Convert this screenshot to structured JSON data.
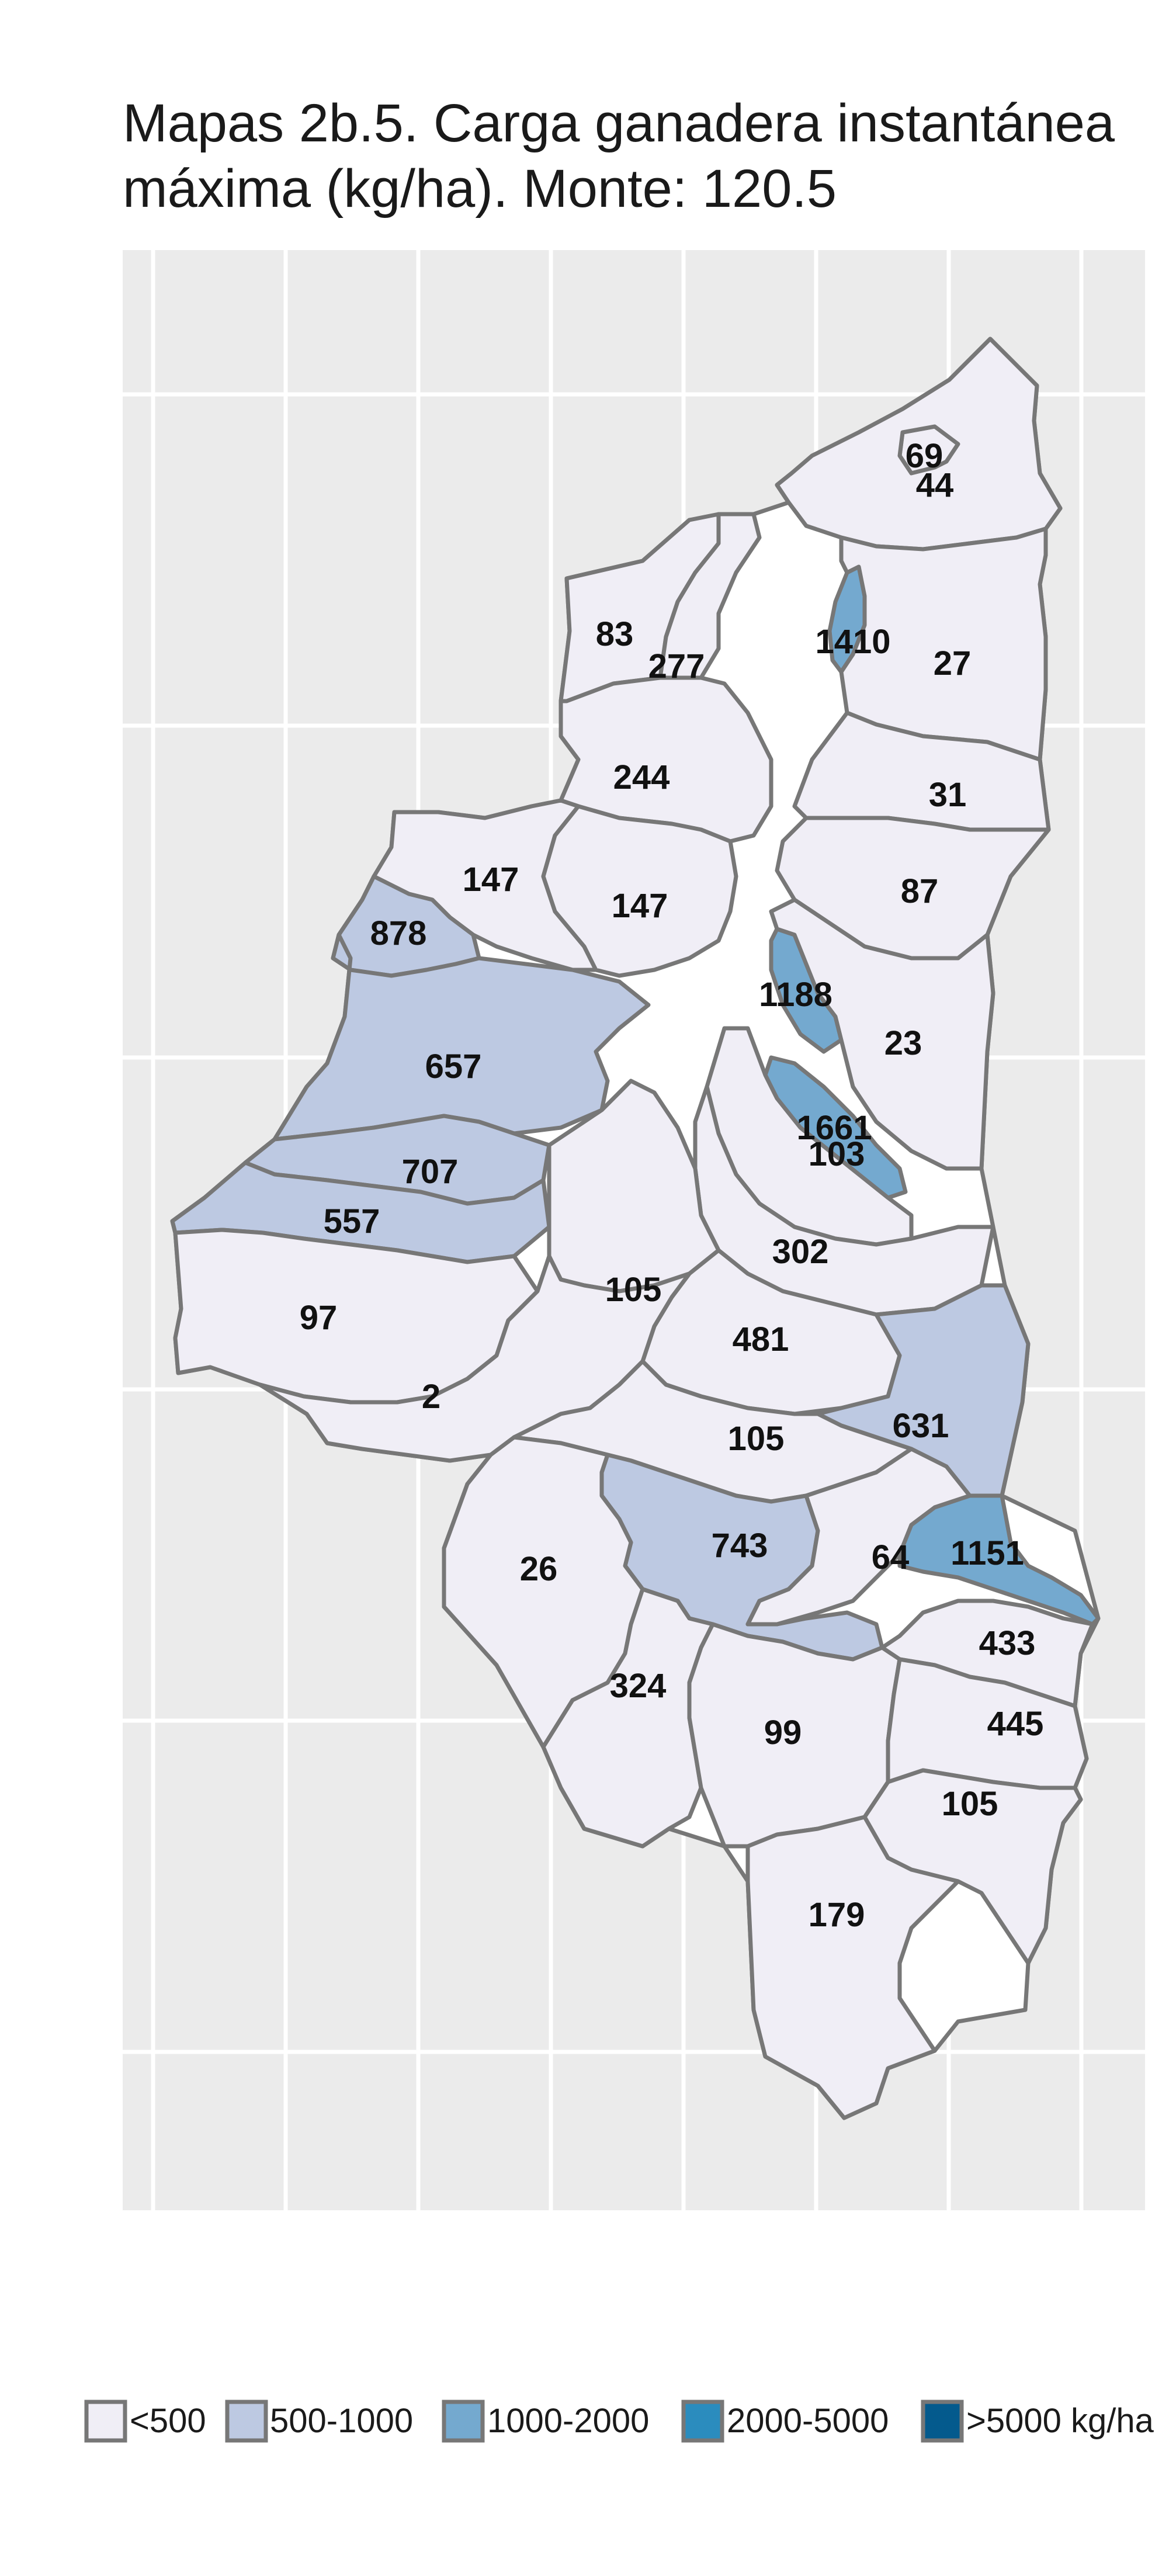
{
  "title_line1": "Mapas 2b.5. Carga ganadera instantánea",
  "title_line2": "máxima (kg/ha). Monte: 120.5",
  "colors": {
    "panel_bg": "#ebebeb",
    "grid": "#ffffff",
    "border": "#777777",
    "lt500": "#f0eef6",
    "500_1000": "#bdc9e2",
    "1000_2000": "#74a9cf",
    "2000_5000": "#2b8cbe",
    "gt5000": "#045a8d",
    "no_data": "#ffffff"
  },
  "legend": [
    {
      "label": "<500",
      "color": "#f0eef6"
    },
    {
      "label": "500-1000",
      "color": "#bdc9e2"
    },
    {
      "label": "1000-2000",
      "color": "#74a9cf"
    },
    {
      "label": "2000-5000",
      "color": "#2b8cbe"
    },
    {
      "label": ">5000 kg/ha",
      "color": "#045a8d"
    }
  ],
  "parcels": [
    {
      "id": "p-69",
      "label": "69",
      "category": "lt500"
    },
    {
      "id": "p-44",
      "label": "44",
      "category": "lt500"
    },
    {
      "id": "p-83",
      "label": "83",
      "category": "lt500"
    },
    {
      "id": "p-277",
      "label": "277",
      "category": "lt500"
    },
    {
      "id": "p-1410",
      "label": "1410",
      "category": "1000_2000"
    },
    {
      "id": "p-27",
      "label": "27",
      "category": "lt500"
    },
    {
      "id": "p-244",
      "label": "244",
      "category": "lt500"
    },
    {
      "id": "p-31",
      "label": "31",
      "category": "lt500"
    },
    {
      "id": "p-147a",
      "label": "147",
      "category": "lt500"
    },
    {
      "id": "p-147b",
      "label": "147",
      "category": "lt500"
    },
    {
      "id": "p-87",
      "label": "87",
      "category": "lt500"
    },
    {
      "id": "p-878",
      "label": "878",
      "category": "500_1000"
    },
    {
      "id": "p-1188",
      "label": "1188",
      "category": "1000_2000"
    },
    {
      "id": "p-657",
      "label": "657",
      "category": "500_1000"
    },
    {
      "id": "p-23",
      "label": "23",
      "category": "lt500"
    },
    {
      "id": "p-1661",
      "label": "1661",
      "category": "1000_2000"
    },
    {
      "id": "p-103",
      "label": "103",
      "category": "lt500"
    },
    {
      "id": "p-707",
      "label": "707",
      "category": "500_1000"
    },
    {
      "id": "p-557",
      "label": "557",
      "category": "500_1000"
    },
    {
      "id": "p-302",
      "label": "302",
      "category": "lt500"
    },
    {
      "id": "p-105a",
      "label": "105",
      "category": "lt500"
    },
    {
      "id": "p-97",
      "label": "97",
      "category": "lt500"
    },
    {
      "id": "p-481",
      "label": "481",
      "category": "lt500"
    },
    {
      "id": "p-2",
      "label": "2",
      "category": "lt500"
    },
    {
      "id": "p-631",
      "label": "631",
      "category": "500_1000"
    },
    {
      "id": "p-105b",
      "label": "105",
      "category": "lt500"
    },
    {
      "id": "p-743",
      "label": "743",
      "category": "500_1000"
    },
    {
      "id": "p-64",
      "label": "64",
      "category": "lt500"
    },
    {
      "id": "p-1151",
      "label": "1151",
      "category": "1000_2000"
    },
    {
      "id": "p-26",
      "label": "26",
      "category": "lt500"
    },
    {
      "id": "p-433",
      "label": "433",
      "category": "lt500"
    },
    {
      "id": "p-324",
      "label": "324",
      "category": "lt500"
    },
    {
      "id": "p-99",
      "label": "99",
      "category": "lt500"
    },
    {
      "id": "p-445",
      "label": "445",
      "category": "lt500"
    },
    {
      "id": "p-105c",
      "label": "105",
      "category": "lt500"
    },
    {
      "id": "p-179",
      "label": "179",
      "category": "lt500"
    }
  ]
}
